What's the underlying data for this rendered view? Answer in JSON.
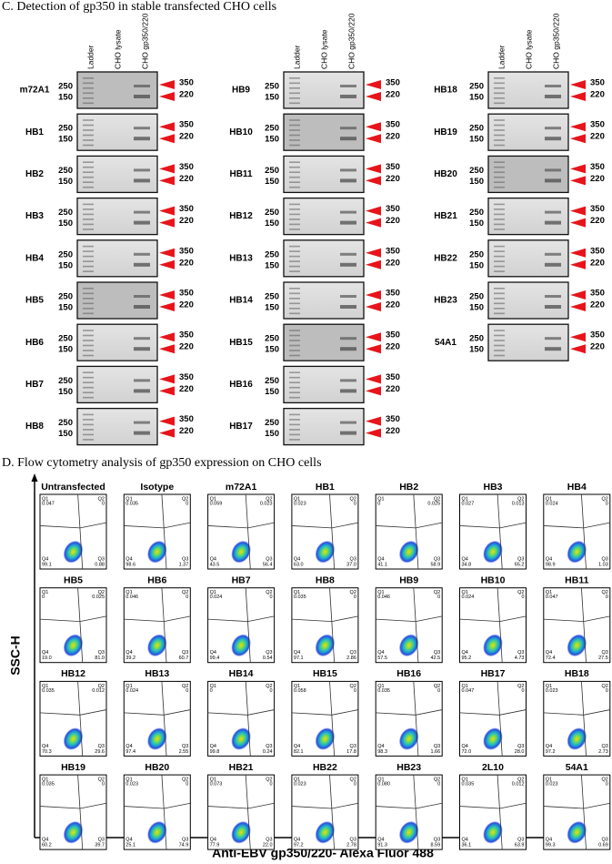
{
  "section_c": {
    "title": "C.  Detection of gp350 in stable transfected CHO cells",
    "lane_labels": [
      "Ladder",
      "CHO lysate",
      "CHO gp350/220"
    ],
    "left_markers": [
      "250",
      "150"
    ],
    "right_markers": [
      "350",
      "220"
    ],
    "columns": [
      [
        "m72A1",
        "HB1",
        "HB2",
        "HB3",
        "HB4",
        "HB5",
        "HB6",
        "HB7",
        "HB8"
      ],
      [
        "HB9",
        "HB10",
        "HB11",
        "HB12",
        "HB13",
        "HB14",
        "HB15",
        "HB16",
        "HB17"
      ],
      [
        "HB18",
        "HB19",
        "HB20",
        "HB21",
        "HB22",
        "HB23",
        "54A1"
      ]
    ]
  },
  "section_d": {
    "title": "D.  Flow cytometry analysis of gp350 expression on CHO cells",
    "y_axis_label": "SSC-H",
    "x_axis_label": "Anti-EBV gp350/220- Alexa Fluor 488",
    "quadrant_labels": [
      "Q1",
      "Q2",
      "Q3",
      "Q4"
    ],
    "plots": [
      {
        "name": "Untransfected",
        "q1": "0.047",
        "q2": "0",
        "q3": "0.88",
        "q4": "99.1"
      },
      {
        "name": "Isotype",
        "q1": "0.035",
        "q2": "0",
        "q3": "1.37",
        "q4": "98.6"
      },
      {
        "name": "m72A1",
        "q1": "0.059",
        "q2": "0.023",
        "q3": "56.4",
        "q4": "43.5"
      },
      {
        "name": "HB1",
        "q1": "0.023",
        "q2": "0",
        "q3": "37.0",
        "q4": "63.0"
      },
      {
        "name": "HB2",
        "q1": "0",
        "q2": "0.025",
        "q3": "58.9",
        "q4": "41.1"
      },
      {
        "name": "HB3",
        "q1": "0.027",
        "q2": "0.013",
        "q3": "65.2",
        "q4": "34.8"
      },
      {
        "name": "HB4",
        "q1": "0.024",
        "q2": "0",
        "q3": "1.03",
        "q4": "98.9"
      },
      {
        "name": "HB5",
        "q1": "0",
        "q2": "0.025",
        "q3": "81.0",
        "q4": "19.0"
      },
      {
        "name": "HB6",
        "q1": "0.046",
        "q2": "0",
        "q3": "60.7",
        "q4": "39.2"
      },
      {
        "name": "HB7",
        "q1": "0.024",
        "q2": "0",
        "q3": "0.54",
        "q4": "99.4"
      },
      {
        "name": "HB8",
        "q1": "0.035",
        "q2": "0",
        "q3": "2.86",
        "q4": "97.1"
      },
      {
        "name": "HB9",
        "q1": "0.046",
        "q2": "0",
        "q3": "42.5",
        "q4": "57.5"
      },
      {
        "name": "HB10",
        "q1": "0.024",
        "q2": "0",
        "q3": "4.73",
        "q4": "95.2"
      },
      {
        "name": "HB11",
        "q1": "0.047",
        "q2": "0",
        "q3": "27.5",
        "q4": "72.4"
      },
      {
        "name": "HB12",
        "q1": "0.035",
        "q2": "0.012",
        "q3": "29.6",
        "q4": "70.3"
      },
      {
        "name": "HB13",
        "q1": "0.024",
        "q2": "0",
        "q3": "2.55",
        "q4": "97.4"
      },
      {
        "name": "HB14",
        "q1": "0",
        "q2": "0",
        "q3": "0.24",
        "q4": "99.8"
      },
      {
        "name": "HB15",
        "q1": "0.058",
        "q2": "0",
        "q3": "17.8",
        "q4": "82.1"
      },
      {
        "name": "HB16",
        "q1": "0.035",
        "q2": "0",
        "q3": "1.66",
        "q4": "98.3"
      },
      {
        "name": "HB17",
        "q1": "0.047",
        "q2": "0",
        "q3": "28.0",
        "q4": "72.0"
      },
      {
        "name": "HB18",
        "q1": "0.023",
        "q2": "0",
        "q3": "2.73",
        "q4": "97.2"
      },
      {
        "name": "HB19",
        "q1": "0.035",
        "q2": "0",
        "q3": "39.7",
        "q4": "60.2"
      },
      {
        "name": "HB20",
        "q1": "0.023",
        "q2": "0",
        "q3": "74.9",
        "q4": "25.1"
      },
      {
        "name": "HB21",
        "q1": "0.073",
        "q2": "0",
        "q3": "22.0",
        "q4": "77.9"
      },
      {
        "name": "HB22",
        "q1": "0.023",
        "q2": "0",
        "q3": "2.78",
        "q4": "97.2"
      },
      {
        "name": "HB23",
        "q1": "0.080",
        "q2": "0",
        "q3": "8.59",
        "q4": "91.3"
      },
      {
        "name": "2L10",
        "q1": "0.035",
        "q2": "0.012",
        "q3": "63.9",
        "q4": "36.1"
      },
      {
        "name": "54A1",
        "q1": "0.023",
        "q2": "0",
        "q3": "0.69",
        "q4": "99.3"
      }
    ]
  }
}
